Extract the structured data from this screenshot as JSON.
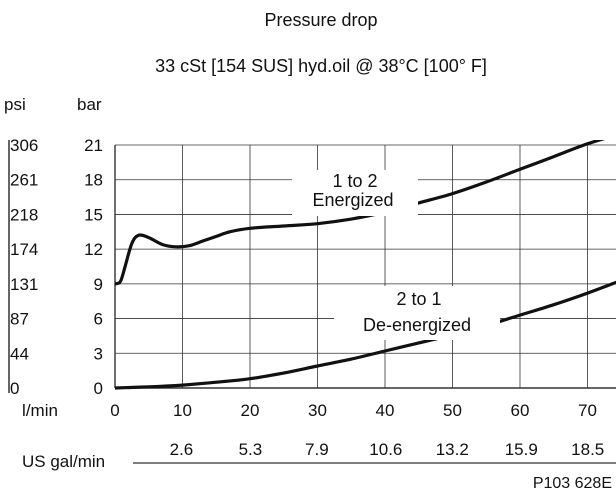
{
  "colors": {
    "curve": "#111111",
    "grid": "#333333",
    "background": "#ffffff"
  },
  "chart_data": {
    "type": "line",
    "title": "Pressure drop",
    "subtitle": "33 cSt [154 SUS] hyd.oil @ 38°C [100° F]",
    "x_axis": {
      "unit_primary": "l/min",
      "ticks_primary": [
        "0",
        "10",
        "20",
        "30",
        "40",
        "50",
        "60",
        "70"
      ],
      "unit_secondary": "US gal/min",
      "ticks_secondary": [
        "2.6",
        "5.3",
        "7.9",
        "10.6",
        "13.2",
        "15.9",
        "18.5"
      ],
      "range": [
        0,
        75
      ]
    },
    "y_axis": {
      "unit_left": "psi",
      "ticks_left": [
        "306",
        "261",
        "218",
        "174",
        "131",
        "87",
        "44",
        "0"
      ],
      "unit_right": "bar",
      "ticks_right": [
        "21",
        "18",
        "15",
        "12",
        "9",
        "6",
        "3",
        "0"
      ],
      "range": [
        0,
        21
      ]
    },
    "grid": true,
    "series": [
      {
        "name": "1 to 2",
        "name_line2": "Energized",
        "x": [
          0,
          0.8,
          1.5,
          2.5,
          3.5,
          5,
          7,
          9,
          11,
          13,
          15,
          17,
          20,
          25,
          30,
          35,
          40,
          45,
          50,
          55,
          60,
          65,
          70,
          75
        ],
        "y": [
          9,
          9.2,
          10.5,
          12.5,
          13.2,
          13,
          12.4,
          12.2,
          12.3,
          12.7,
          13.1,
          13.5,
          13.8,
          14.0,
          14.2,
          14.6,
          15.2,
          16.0,
          16.8,
          17.8,
          18.9,
          20.0,
          21.1,
          22.0
        ]
      },
      {
        "name": "2 to 1",
        "name_line2": "De-energized",
        "x": [
          0,
          5,
          10,
          15,
          20,
          25,
          30,
          35,
          40,
          45,
          50,
          55,
          60,
          65,
          70,
          75
        ],
        "y": [
          0,
          0.1,
          0.25,
          0.5,
          0.8,
          1.3,
          1.9,
          2.5,
          3.2,
          3.9,
          4.6,
          5.4,
          6.3,
          7.2,
          8.2,
          9.3
        ]
      }
    ]
  },
  "figure_ref": "P103 628E"
}
